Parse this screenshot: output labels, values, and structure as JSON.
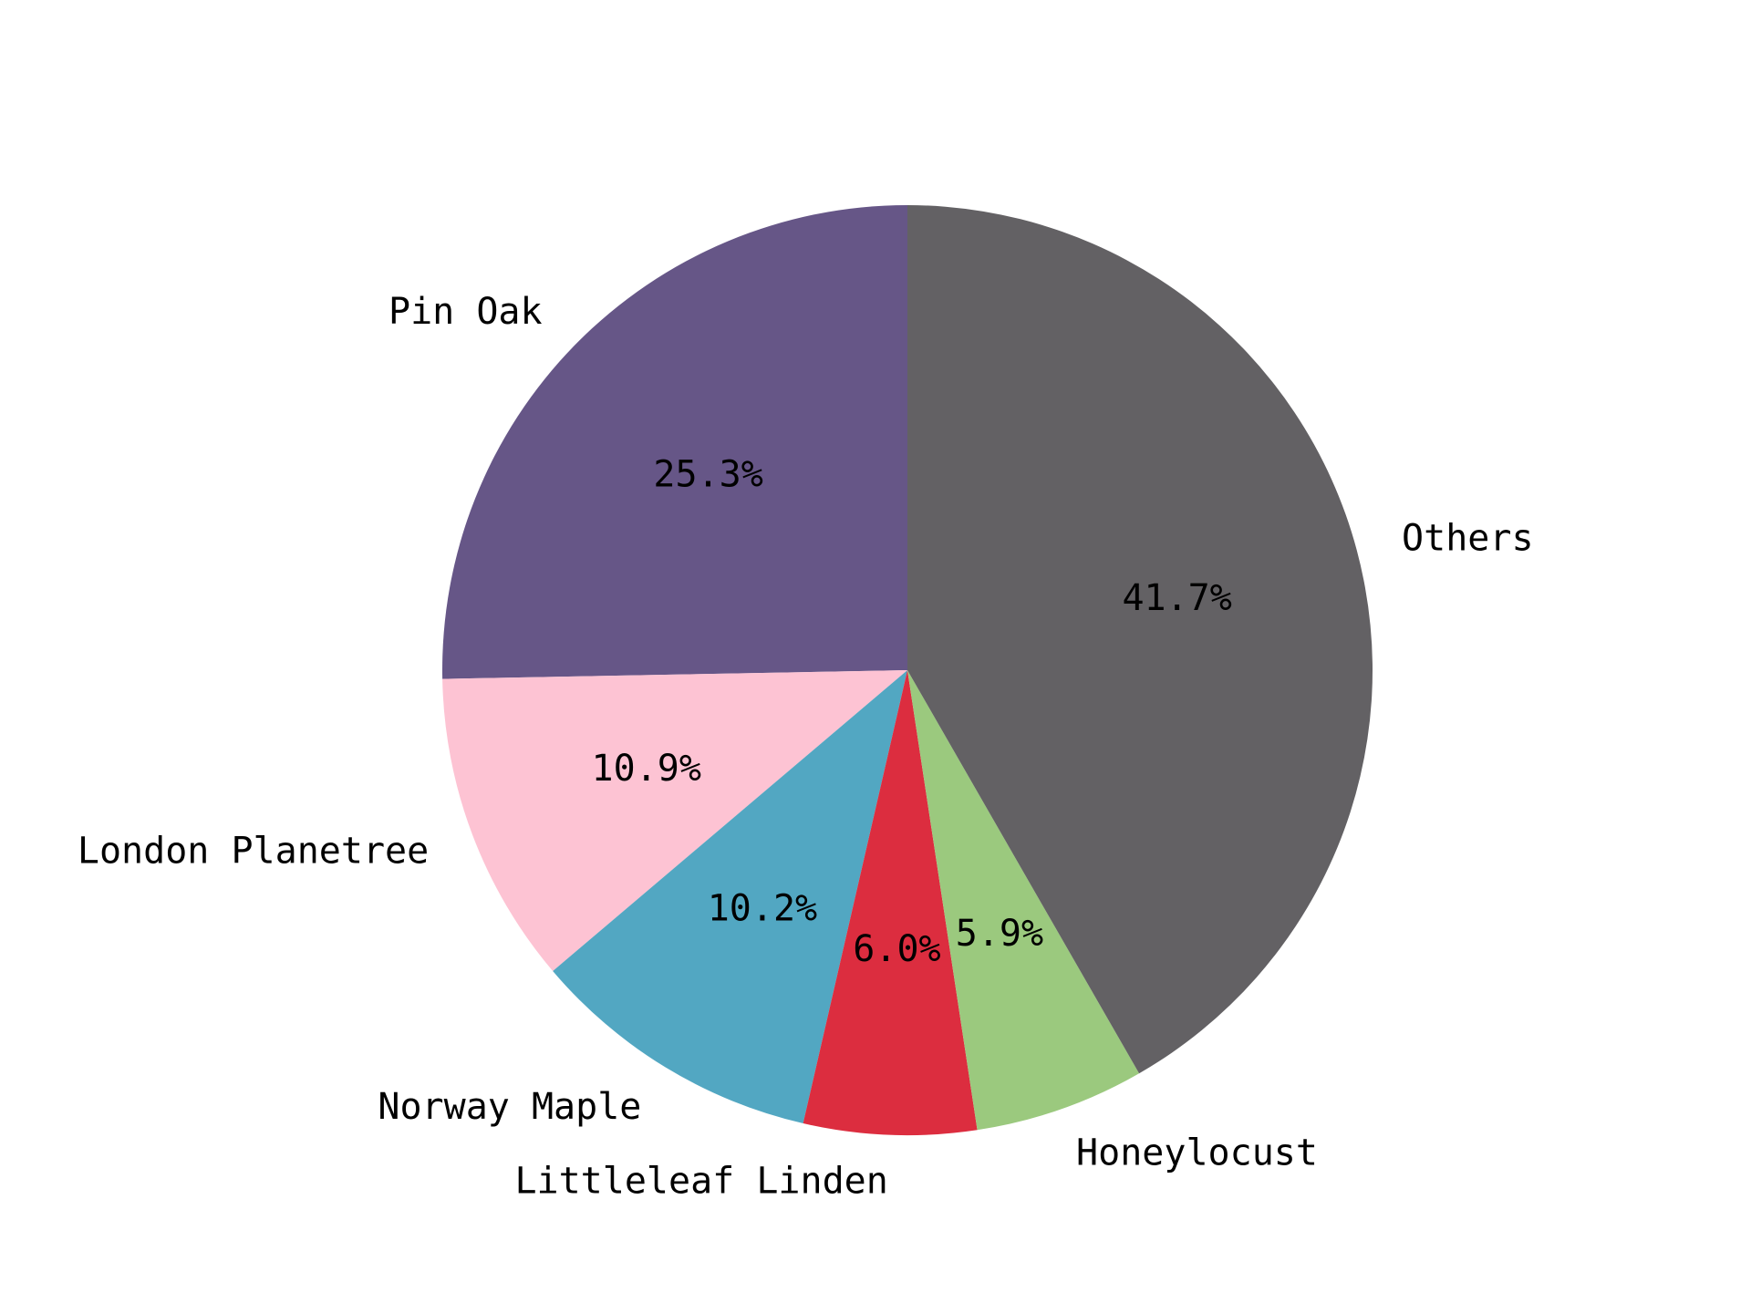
{
  "chart_data": {
    "type": "pie",
    "title": "",
    "start_angle_deg": 90,
    "direction": "counterclockwise",
    "slices": [
      {
        "label": "Pin Oak",
        "value": 25.3,
        "pct_label": "25.3%",
        "color": "#665687"
      },
      {
        "label": "London Planetree",
        "value": 10.9,
        "pct_label": "10.9%",
        "color": "#fdc3d3"
      },
      {
        "label": "Norway Maple",
        "value": 10.2,
        "pct_label": "10.2%",
        "color": "#52a7c2"
      },
      {
        "label": "Littleleaf Linden",
        "value": 6.0,
        "pct_label": "6.0%",
        "color": "#dc2d3f"
      },
      {
        "label": "Honeylocust",
        "value": 5.9,
        "pct_label": "5.9%",
        "color": "#9bc97e"
      },
      {
        "label": "Others",
        "value": 41.7,
        "pct_label": "41.7%",
        "color": "#636164"
      }
    ],
    "legend": "none"
  }
}
